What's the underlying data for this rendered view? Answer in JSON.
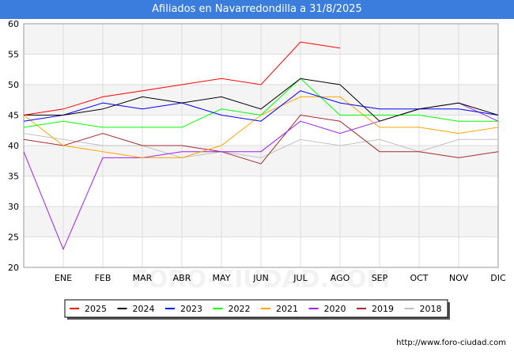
{
  "header": {
    "title": "Afiliados en Navarredondilla a 31/8/2025"
  },
  "footer": {
    "source": "http://www.foro-ciudad.com"
  },
  "watermark": "FORO-CIUDAD.COM",
  "chart_data": {
    "type": "line",
    "title": "Afiliados en Navarredondilla a 31/8/2025",
    "xlabel": "",
    "ylabel": "",
    "x_points": [
      "",
      "ENE",
      "FEB",
      "MAR",
      "ABR",
      "MAY",
      "JUN",
      "JUL",
      "AGO",
      "SEP",
      "OCT",
      "NOV",
      "DIC"
    ],
    "tick_labels": [
      "ENE",
      "FEB",
      "MAR",
      "ABR",
      "MAY",
      "JUN",
      "JUL",
      "AGO",
      "SEP",
      "OCT",
      "NOV",
      "DIC"
    ],
    "ylim": [
      20,
      60
    ],
    "yticks": [
      20,
      25,
      30,
      35,
      40,
      45,
      50,
      55,
      60
    ],
    "grid": true,
    "legend_position": "bottom",
    "series": [
      {
        "name": "2025",
        "color": "#ff0000",
        "values": [
          45,
          46,
          48,
          49,
          50,
          51,
          50,
          57,
          56
        ]
      },
      {
        "name": "2024",
        "color": "#000000",
        "values": [
          45,
          45,
          46,
          48,
          47,
          48,
          46,
          51,
          50,
          44,
          46,
          47,
          45
        ]
      },
      {
        "name": "2023",
        "color": "#0000ff",
        "values": [
          44,
          45,
          47,
          46,
          47,
          45,
          44,
          49,
          47,
          46,
          46,
          46,
          45
        ]
      },
      {
        "name": "2022",
        "color": "#00ff00",
        "values": [
          43,
          44,
          43,
          43,
          43,
          46,
          45,
          51,
          45,
          45,
          45,
          44,
          44
        ]
      },
      {
        "name": "2021",
        "color": "#ffa500",
        "values": [
          45,
          40,
          39,
          38,
          38,
          40,
          45,
          48,
          48,
          43,
          43,
          42,
          43
        ]
      },
      {
        "name": "2020",
        "color": "#a020f0",
        "values": [
          39,
          23,
          38,
          38,
          39,
          39,
          39,
          44,
          42,
          44,
          46,
          47,
          44
        ]
      },
      {
        "name": "2019",
        "color": "#a52a2a",
        "values": [
          41,
          40,
          42,
          40,
          40,
          39,
          37,
          45,
          44,
          39,
          39,
          38,
          39
        ]
      },
      {
        "name": "2018",
        "color": "#c0c0c0",
        "values": [
          42,
          41,
          40,
          40,
          38,
          39,
          38,
          41,
          40,
          41,
          39,
          41,
          41
        ]
      }
    ]
  }
}
